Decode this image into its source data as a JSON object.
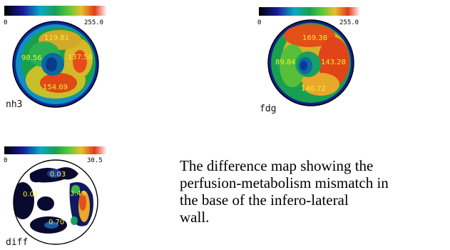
{
  "colorbar": {
    "gradient": [
      "#000000",
      "#1a1a9a",
      "#0aa8c8",
      "#1aa050",
      "#55c83a",
      "#e6c02a",
      "#e03a1a",
      "#ffffff"
    ]
  },
  "maps": [
    {
      "name": "nh3",
      "scale_min": "0",
      "scale_max": "255.0",
      "values": {
        "top": "119.81",
        "left": "98.56",
        "right": "137.50",
        "bottom": "154.69"
      }
    },
    {
      "name": "fdg",
      "scale_min": "0",
      "scale_max": "255.0",
      "values": {
        "top": "169.38",
        "left": "89.84",
        "right": "143.28",
        "bottom": "140.72"
      }
    },
    {
      "name": "diff",
      "scale_min": "0",
      "scale_max": "30.5",
      "values": {
        "top": "0.03",
        "left": "0.01",
        "right": "3.49",
        "bottom": "0.70"
      }
    }
  ],
  "caption": {
    "lines": [
      "The difference map showing the",
      "perfusion-metabolism mismatch in",
      "the base of the infero-lateral",
      "wall."
    ]
  }
}
